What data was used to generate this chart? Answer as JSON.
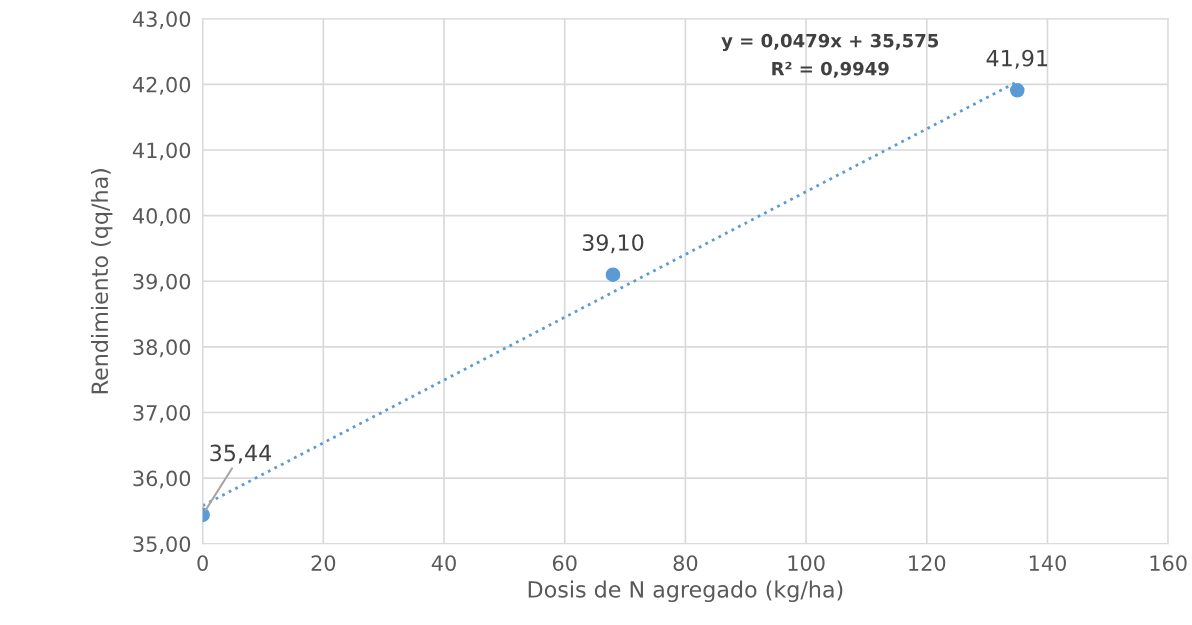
{
  "chart_data": {
    "type": "scatter",
    "xlabel": "Dosis de N agregado (kg/ha)",
    "ylabel": "Rendimiento (qq/ha)",
    "series": [
      {
        "color": "#5b9bd5",
        "x": [
          0,
          68,
          135
        ],
        "values": [
          35.44,
          39.1,
          41.91
        ],
        "value_labels": [
          "35,44",
          "39,10",
          "41,91"
        ],
        "marker": "circle"
      },
      {
        "type": "line",
        "color": "#5b9bd5",
        "x": [
          0,
          135
        ],
        "values": [
          35.58,
          42.04
        ],
        "line_style": "dotted",
        "marker": "none"
      }
    ],
    "annotations": [
      "y = 0,0479x + 35,575",
      "R² = 0,9949"
    ],
    "xlim": [
      0,
      160
    ],
    "xticks": [
      0,
      20,
      40,
      60,
      80,
      100,
      120,
      140,
      160
    ],
    "ylim": [
      35,
      43
    ],
    "yticks": [
      {
        "value": 35,
        "label": "35,00"
      },
      {
        "value": 36,
        "label": "36,00"
      },
      {
        "value": 37,
        "label": "37,00"
      },
      {
        "value": 38,
        "label": "38,00"
      },
      {
        "value": 39,
        "label": "39,00"
      },
      {
        "value": 40,
        "label": "40,00"
      },
      {
        "value": 41,
        "label": "41,00"
      },
      {
        "value": 42,
        "label": "42,00"
      },
      {
        "value": 43,
        "label": "43,00"
      }
    ],
    "grid": true,
    "legend": false
  }
}
